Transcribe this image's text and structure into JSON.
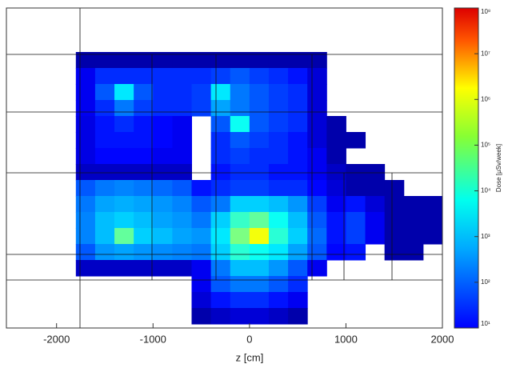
{
  "chart_data": {
    "type": "heatmap",
    "xlabel": "z [cm]",
    "xlim": [
      -2520,
      2000
    ],
    "xticks": [
      -2000,
      -1000,
      0,
      1000,
      2000
    ],
    "x_edges": [
      -1800,
      -1600,
      -1400,
      -1200,
      -1000,
      -800,
      -600,
      -400,
      -200,
      0,
      200,
      400,
      600,
      800,
      1000,
      1200,
      1400,
      1600,
      1800,
      2000
    ],
    "values": [
      [
        20,
        20,
        20,
        20,
        20,
        20,
        20,
        20,
        20,
        20,
        20,
        20,
        20,
        null,
        null,
        null,
        null,
        null,
        null
      ],
      [
        60,
        150,
        150,
        150,
        150,
        150,
        150,
        200,
        300,
        200,
        150,
        100,
        40,
        null,
        null,
        null,
        null,
        null,
        null
      ],
      [
        60,
        300,
        3000,
        300,
        150,
        150,
        200,
        3000,
        500,
        300,
        200,
        150,
        40,
        null,
        null,
        null,
        null,
        null,
        null
      ],
      [
        60,
        150,
        500,
        200,
        150,
        150,
        200,
        1000,
        500,
        300,
        200,
        150,
        40,
        null,
        null,
        null,
        null,
        null,
        null
      ],
      [
        50,
        100,
        150,
        100,
        80,
        60,
        null,
        300,
        5000,
        300,
        200,
        150,
        40,
        20,
        null,
        null,
        null,
        null,
        null
      ],
      [
        50,
        100,
        100,
        100,
        80,
        60,
        null,
        150,
        300,
        200,
        150,
        100,
        40,
        20,
        20,
        null,
        null,
        null,
        null
      ],
      [
        50,
        80,
        80,
        80,
        60,
        60,
        null,
        150,
        200,
        150,
        150,
        100,
        60,
        20,
        null,
        null,
        null,
        null,
        null
      ],
      [
        30,
        30,
        30,
        30,
        30,
        30,
        null,
        100,
        150,
        150,
        100,
        100,
        60,
        30,
        20,
        20,
        null,
        null,
        null
      ],
      [
        300,
        500,
        600,
        500,
        400,
        300,
        100,
        150,
        200,
        200,
        150,
        150,
        80,
        40,
        20,
        20,
        20,
        null,
        null
      ],
      [
        500,
        1000,
        1200,
        1000,
        800,
        600,
        300,
        500,
        2000,
        2000,
        1500,
        800,
        200,
        60,
        100,
        40,
        20,
        20,
        20
      ],
      [
        600,
        1500,
        2000,
        1500,
        1000,
        800,
        500,
        2000,
        10000,
        20000,
        5000,
        1500,
        300,
        100,
        200,
        60,
        20,
        20,
        20
      ],
      [
        600,
        1500,
        20000,
        2000,
        1500,
        1000,
        800,
        3000,
        30000,
        200000,
        8000,
        2000,
        400,
        100,
        200,
        60,
        20,
        20,
        20
      ],
      [
        300,
        800,
        1000,
        800,
        700,
        600,
        500,
        2000,
        8000,
        5000,
        3000,
        1000,
        300,
        80,
        100,
        null,
        20,
        20,
        null
      ],
      [
        30,
        30,
        30,
        30,
        30,
        30,
        60,
        500,
        1500,
        1500,
        800,
        300,
        60,
        null,
        null,
        null,
        null,
        null,
        null
      ],
      [
        null,
        null,
        null,
        null,
        null,
        null,
        60,
        300,
        500,
        500,
        300,
        150,
        null,
        null,
        null,
        null,
        null,
        null,
        null
      ],
      [
        null,
        null,
        null,
        null,
        null,
        null,
        40,
        100,
        150,
        150,
        100,
        60,
        null,
        null,
        null,
        null,
        null,
        null,
        null
      ],
      [
        null,
        null,
        null,
        null,
        null,
        null,
        20,
        30,
        40,
        40,
        30,
        20,
        null,
        null,
        null,
        null,
        null,
        null,
        null
      ]
    ],
    "colorbar": {
      "label": "Dose [µSv/week]",
      "log": true,
      "lim": [
        10,
        100000000
      ],
      "ticks": [
        {
          "value": 10,
          "label": "10¹"
        },
        {
          "value": 100,
          "label": "10²"
        },
        {
          "value": 1000,
          "label": "10³"
        },
        {
          "value": 10000,
          "label": "10⁴"
        },
        {
          "value": 100000,
          "label": "10⁵"
        },
        {
          "value": 1000000,
          "label": "10⁶"
        },
        {
          "value": 10000000,
          "label": "10⁷"
        },
        {
          "value": 100000000,
          "label": "10⁸"
        }
      ]
    }
  }
}
